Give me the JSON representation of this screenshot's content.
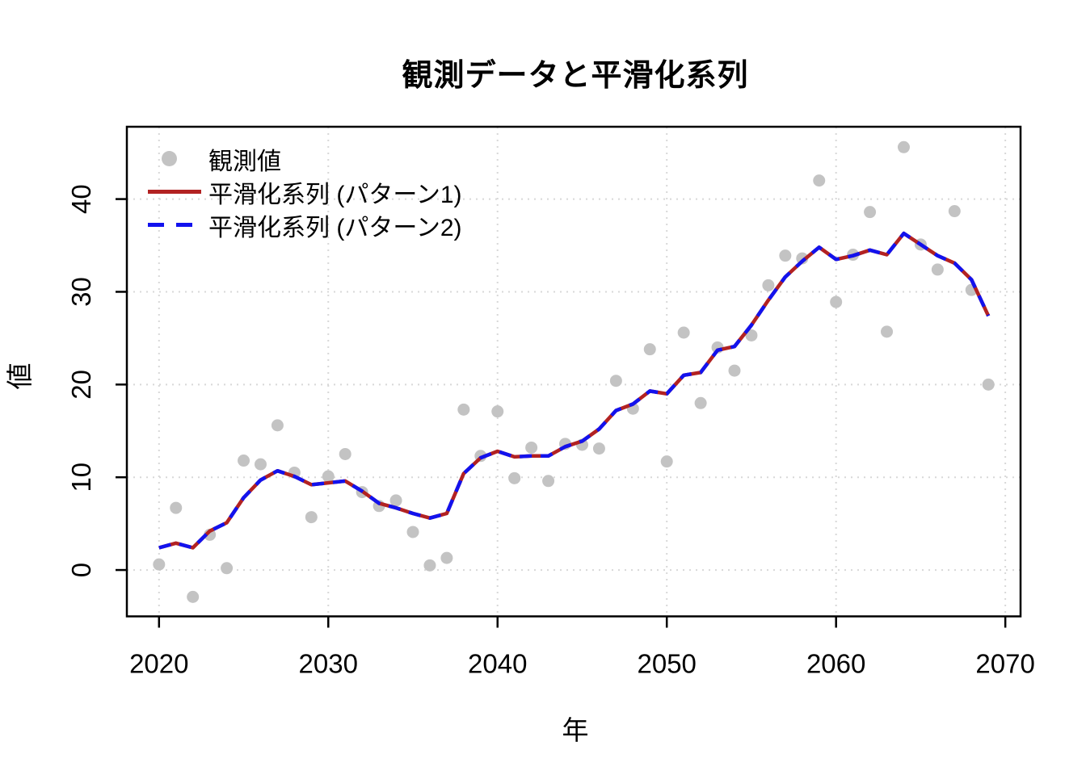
{
  "figure_title": "観測データと平滑化系列",
  "colors": {
    "background": "#ffffff",
    "grid": "#D8D8D8",
    "box": "#000000",
    "observed_gray": "#C3C3C3",
    "pattern1_red": "#B22222",
    "pattern2_blue": "#1212EE",
    "tick_text": "#000000"
  },
  "legend": {
    "items": [
      {
        "marker": "gray-dot"
      },
      {
        "marker": "solid-red-line"
      },
      {
        "marker": "dashed-blue-line"
      }
    ]
  },
  "chart_data": {
    "type": "line",
    "title": "観測データと平滑化系列",
    "xlabel": "年",
    "ylabel": "値",
    "xlim": [
      2018.1,
      2070.9
    ],
    "ylim": [
      -5.0,
      47.8
    ],
    "grid": true,
    "grid_style": "dotted",
    "legend_position": "top-left-inside",
    "x_ticks": [
      2020,
      2030,
      2040,
      2050,
      2060,
      2070
    ],
    "x_ticklabels": [
      "2020",
      "2030",
      "2040",
      "2050",
      "2060",
      "2070"
    ],
    "y_ticks": [
      0,
      10,
      20,
      30,
      40
    ],
    "y_ticklabels": [
      "0",
      "10",
      "20",
      "30",
      "40"
    ],
    "x": [
      2020,
      2021,
      2022,
      2023,
      2024,
      2025,
      2026,
      2027,
      2028,
      2029,
      2030,
      2031,
      2032,
      2033,
      2034,
      2035,
      2036,
      2037,
      2038,
      2039,
      2040,
      2041,
      2042,
      2043,
      2044,
      2045,
      2046,
      2047,
      2048,
      2049,
      2050,
      2051,
      2052,
      2053,
      2054,
      2055,
      2056,
      2057,
      2058,
      2059,
      2060,
      2061,
      2062,
      2063,
      2064,
      2065,
      2066,
      2067,
      2068,
      2069
    ],
    "series": [
      {
        "name": "観測値",
        "type": "scatter",
        "color": "#C3C3C3",
        "values": [
          0.6,
          6.7,
          -2.9,
          3.8,
          0.2,
          11.8,
          11.4,
          15.6,
          10.5,
          5.7,
          10.1,
          12.5,
          8.4,
          6.9,
          7.5,
          4.1,
          0.5,
          1.3,
          17.3,
          12.3,
          17.1,
          9.9,
          13.2,
          9.6,
          13.6,
          13.5,
          13.1,
          20.4,
          17.4,
          23.8,
          11.7,
          25.6,
          18.0,
          24.0,
          21.5,
          25.3,
          30.7,
          33.9,
          33.6,
          42.0,
          28.9,
          34.0,
          38.6,
          25.7,
          45.6,
          35.1,
          32.4,
          38.7,
          30.2,
          20.0
        ]
      },
      {
        "name": "平滑化系列 (パターン1)",
        "type": "line",
        "line_style": "solid",
        "color": "#B22222",
        "values": [
          2.4,
          2.9,
          2.4,
          4.2,
          5.1,
          7.8,
          9.7,
          10.7,
          10.1,
          9.2,
          9.4,
          9.6,
          8.5,
          7.2,
          6.7,
          6.1,
          5.6,
          6.1,
          10.4,
          12.1,
          12.8,
          12.2,
          12.3,
          12.3,
          13.3,
          13.9,
          15.2,
          17.2,
          17.9,
          19.3,
          19.0,
          21.0,
          21.3,
          23.7,
          24.1,
          26.4,
          29.1,
          31.6,
          33.3,
          34.8,
          33.5,
          33.9,
          34.5,
          34.0,
          36.3,
          35.1,
          33.9,
          33.1,
          31.3,
          27.4
        ]
      },
      {
        "name": "平滑化系列 (パターン2)",
        "type": "line",
        "line_style": "dashed",
        "color": "#1212EE",
        "values": [
          2.4,
          2.9,
          2.4,
          4.2,
          5.1,
          7.8,
          9.7,
          10.7,
          10.1,
          9.2,
          9.4,
          9.6,
          8.5,
          7.2,
          6.7,
          6.1,
          5.6,
          6.1,
          10.4,
          12.1,
          12.8,
          12.2,
          12.3,
          12.3,
          13.3,
          13.9,
          15.2,
          17.2,
          17.9,
          19.3,
          19.0,
          21.0,
          21.3,
          23.7,
          24.1,
          26.4,
          29.1,
          31.6,
          33.3,
          34.8,
          33.5,
          33.9,
          34.5,
          34.0,
          36.3,
          35.1,
          33.9,
          33.1,
          31.3,
          27.4
        ]
      }
    ]
  }
}
